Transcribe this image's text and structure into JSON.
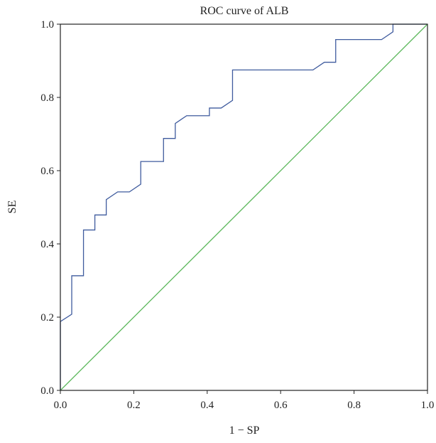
{
  "chart_data": {
    "type": "line",
    "title": "ROC curve of ALB",
    "xlabel": "1 − SP",
    "ylabel": "SE",
    "xlim": [
      0,
      1
    ],
    "ylim": [
      0,
      1
    ],
    "xticks": [
      "0.0",
      "0.2",
      "0.4",
      "0.6",
      "0.8",
      "1.0"
    ],
    "yticks": [
      "0.0",
      "0.2",
      "0.4",
      "0.6",
      "0.8",
      "1.0"
    ],
    "grid": false,
    "series": [
      {
        "role": "roc",
        "color": "#3f5b9e",
        "x": [
          0.0,
          0.0,
          0.031,
          0.031,
          0.031,
          0.063,
          0.063,
          0.094,
          0.094,
          0.125,
          0.125,
          0.156,
          0.188,
          0.219,
          0.219,
          0.281,
          0.281,
          0.313,
          0.313,
          0.344,
          0.406,
          0.406,
          0.438,
          0.469,
          0.469,
          0.688,
          0.719,
          0.75,
          0.75,
          0.875,
          0.906,
          0.906,
          1.0
        ],
        "y": [
          0.0,
          0.188,
          0.208,
          0.25,
          0.313,
          0.313,
          0.438,
          0.438,
          0.479,
          0.479,
          0.521,
          0.542,
          0.542,
          0.563,
          0.625,
          0.625,
          0.688,
          0.688,
          0.729,
          0.75,
          0.75,
          0.771,
          0.771,
          0.792,
          0.875,
          0.875,
          0.896,
          0.896,
          0.958,
          0.958,
          0.979,
          1.0,
          1.0
        ]
      },
      {
        "role": "reference",
        "color": "#5cb85c",
        "x": [
          0,
          1
        ],
        "y": [
          0,
          1
        ]
      }
    ]
  }
}
